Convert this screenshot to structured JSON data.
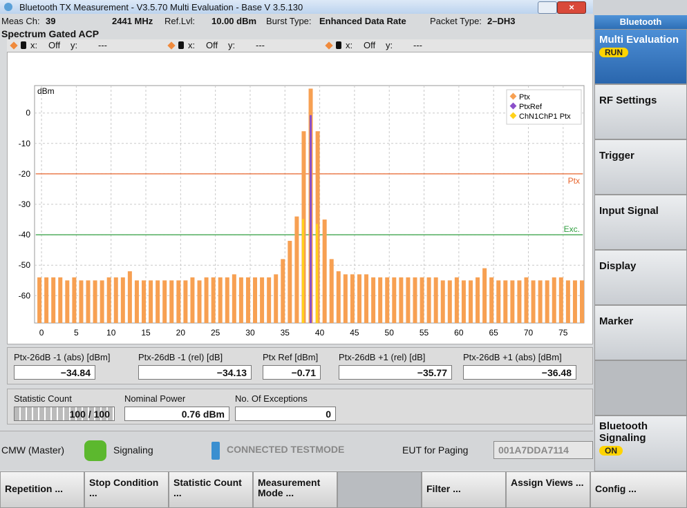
{
  "title_bar": {
    "title": "Bluetooth TX Measurement  - V3.5.70 Multi Evaluation - Base V 3.5.130"
  },
  "info": {
    "meas_ch_label": "Meas Ch:",
    "meas_ch": "39",
    "frequency": "2441 MHz",
    "ref_lvl_label": "Ref.Lvl:",
    "ref_lvl": "10.00 dBm",
    "burst_type_label": "Burst Type:",
    "burst_type": "Enhanced Data Rate",
    "packet_type_label": "Packet Type:",
    "packet_type": "2–DH3"
  },
  "view_title": "Spectrum Gated ACP",
  "markers": [
    {
      "x_label": "x:",
      "x": "Off",
      "y_label": "y:",
      "y": "---"
    },
    {
      "x_label": "x:",
      "x": "Off",
      "y_label": "y:",
      "y": "---"
    },
    {
      "x_label": "x:",
      "x": "Off",
      "y_label": "y:",
      "y": "---"
    }
  ],
  "chart_data": {
    "type": "bar",
    "y_label": "dBm",
    "x": [
      0,
      1,
      2,
      3,
      4,
      5,
      6,
      7,
      8,
      9,
      10,
      11,
      12,
      13,
      14,
      15,
      16,
      17,
      18,
      19,
      20,
      21,
      22,
      23,
      24,
      25,
      26,
      27,
      28,
      29,
      30,
      31,
      32,
      33,
      34,
      35,
      36,
      37,
      38,
      39,
      40,
      41,
      42,
      43,
      44,
      45,
      46,
      47,
      48,
      49,
      50,
      51,
      52,
      53,
      54,
      55,
      56,
      57,
      58,
      59,
      60,
      61,
      62,
      63,
      64,
      65,
      66,
      67,
      68,
      69,
      70,
      71,
      72,
      73,
      74,
      75,
      76,
      77,
      78
    ],
    "series": [
      {
        "name": "Ptx",
        "color": "#f7a052",
        "values": [
          -54,
          -54,
          -54,
          -54,
          -55,
          -54,
          -55,
          -55,
          -55,
          -55,
          -54,
          -54,
          -54,
          -52,
          -55,
          -55,
          -55,
          -55,
          -55,
          -55,
          -55,
          -55,
          -54,
          -55,
          -54,
          -54,
          -54,
          -54,
          -53,
          -54,
          -54,
          -54,
          -54,
          -54,
          -53,
          -48,
          -42,
          -34,
          -6,
          8,
          -6,
          -35,
          -48,
          -52,
          -53,
          -53,
          -53,
          -53,
          -54,
          -54,
          -54,
          -54,
          -54,
          -54,
          -54,
          -54,
          -54,
          -54,
          -55,
          -55,
          -54,
          -55,
          -55,
          -54,
          -51,
          -54,
          -55,
          -55,
          -55,
          -55,
          -54,
          -55,
          -55,
          -55,
          -54,
          -54,
          -55,
          -55,
          -55
        ]
      },
      {
        "name": "PtxRef",
        "color": "#8a4fc9",
        "values": [
          null,
          null,
          null,
          null,
          null,
          null,
          null,
          null,
          null,
          null,
          null,
          null,
          null,
          null,
          null,
          null,
          null,
          null,
          null,
          null,
          null,
          null,
          null,
          null,
          null,
          null,
          null,
          null,
          null,
          null,
          null,
          null,
          null,
          null,
          null,
          null,
          null,
          null,
          null,
          -0.71,
          null,
          null,
          null,
          null,
          null,
          null,
          null,
          null,
          null,
          null,
          null,
          null,
          null,
          null,
          null,
          null,
          null,
          null,
          null,
          null,
          null,
          null,
          null,
          null,
          null,
          null,
          null,
          null,
          null,
          null,
          null,
          null,
          null,
          null,
          null,
          null,
          null,
          null,
          null
        ]
      },
      {
        "name": "ChN1ChP1 Ptx",
        "color": "#ffd21a",
        "values": [
          null,
          null,
          null,
          null,
          null,
          null,
          null,
          null,
          null,
          null,
          null,
          null,
          null,
          null,
          null,
          null,
          null,
          null,
          null,
          null,
          null,
          null,
          null,
          null,
          null,
          null,
          null,
          null,
          null,
          null,
          null,
          null,
          null,
          null,
          null,
          null,
          null,
          null,
          -34.84,
          null,
          -36.48,
          null,
          null,
          null,
          null,
          null,
          null,
          null,
          null,
          null,
          null,
          null,
          null,
          null,
          null,
          null,
          null,
          null,
          null,
          null,
          null,
          null,
          null,
          null,
          null,
          null,
          null,
          null,
          null,
          null,
          null,
          null,
          null,
          null,
          null,
          null,
          null,
          null,
          null
        ]
      }
    ],
    "limit_lines": [
      {
        "name": "Ptx",
        "value": -20,
        "color": "#e8632a"
      },
      {
        "name": "Exc.",
        "value": -40,
        "color": "#2e9e3e"
      }
    ],
    "xlim": [
      -1,
      78
    ],
    "xticks": [
      0,
      5,
      10,
      15,
      20,
      25,
      30,
      35,
      40,
      45,
      50,
      55,
      60,
      65,
      70,
      75
    ],
    "ylim": [
      -69,
      9
    ],
    "yticks": [
      0,
      -10,
      -20,
      -30,
      -40,
      -50,
      -60
    ],
    "grid": true,
    "legend": "top-right"
  },
  "results": [
    {
      "label": "Ptx-26dB -1 (abs) [dBm]",
      "value": "−34.84"
    },
    {
      "label": "Ptx-26dB -1 (rel) [dB]",
      "value": "−34.13"
    },
    {
      "label": "Ptx Ref [dBm]",
      "value": "−0.71"
    },
    {
      "label": "Ptx-26dB +1 (rel) [dB]",
      "value": "−35.77"
    },
    {
      "label": "Ptx-26dB +1 (abs) [dBm]",
      "value": "−36.48"
    }
  ],
  "statistics": [
    {
      "label": "Statistic Count",
      "value": "100 / 100"
    },
    {
      "label": "Nominal Power",
      "value": "0.76  dBm"
    },
    {
      "label": "No. Of Exceptions",
      "value": "0"
    }
  ],
  "status": {
    "master": "CMW (Master)",
    "signaling": "Signaling",
    "connection": "CONNECTED TESTMODE",
    "eut_label": "EUT for Paging",
    "eut_address": "001A7DDA7114"
  },
  "softkeys": [
    "Repetition ...",
    "Stop Condition ...",
    "Statistic Count ...",
    "Measurement Mode ...",
    "Filter ...",
    "Assign Views ...",
    "Config ..."
  ],
  "sidebar": {
    "header": "Bluetooth",
    "buttons": [
      {
        "label": "Multi Evaluation",
        "state": "RUN"
      },
      {
        "label": "RF Settings"
      },
      {
        "label": "Trigger"
      },
      {
        "label": "Input Signal"
      },
      {
        "label": "Display"
      },
      {
        "label": "Marker"
      },
      {
        "label": "Bluetooth Signaling",
        "state": "ON"
      }
    ]
  }
}
